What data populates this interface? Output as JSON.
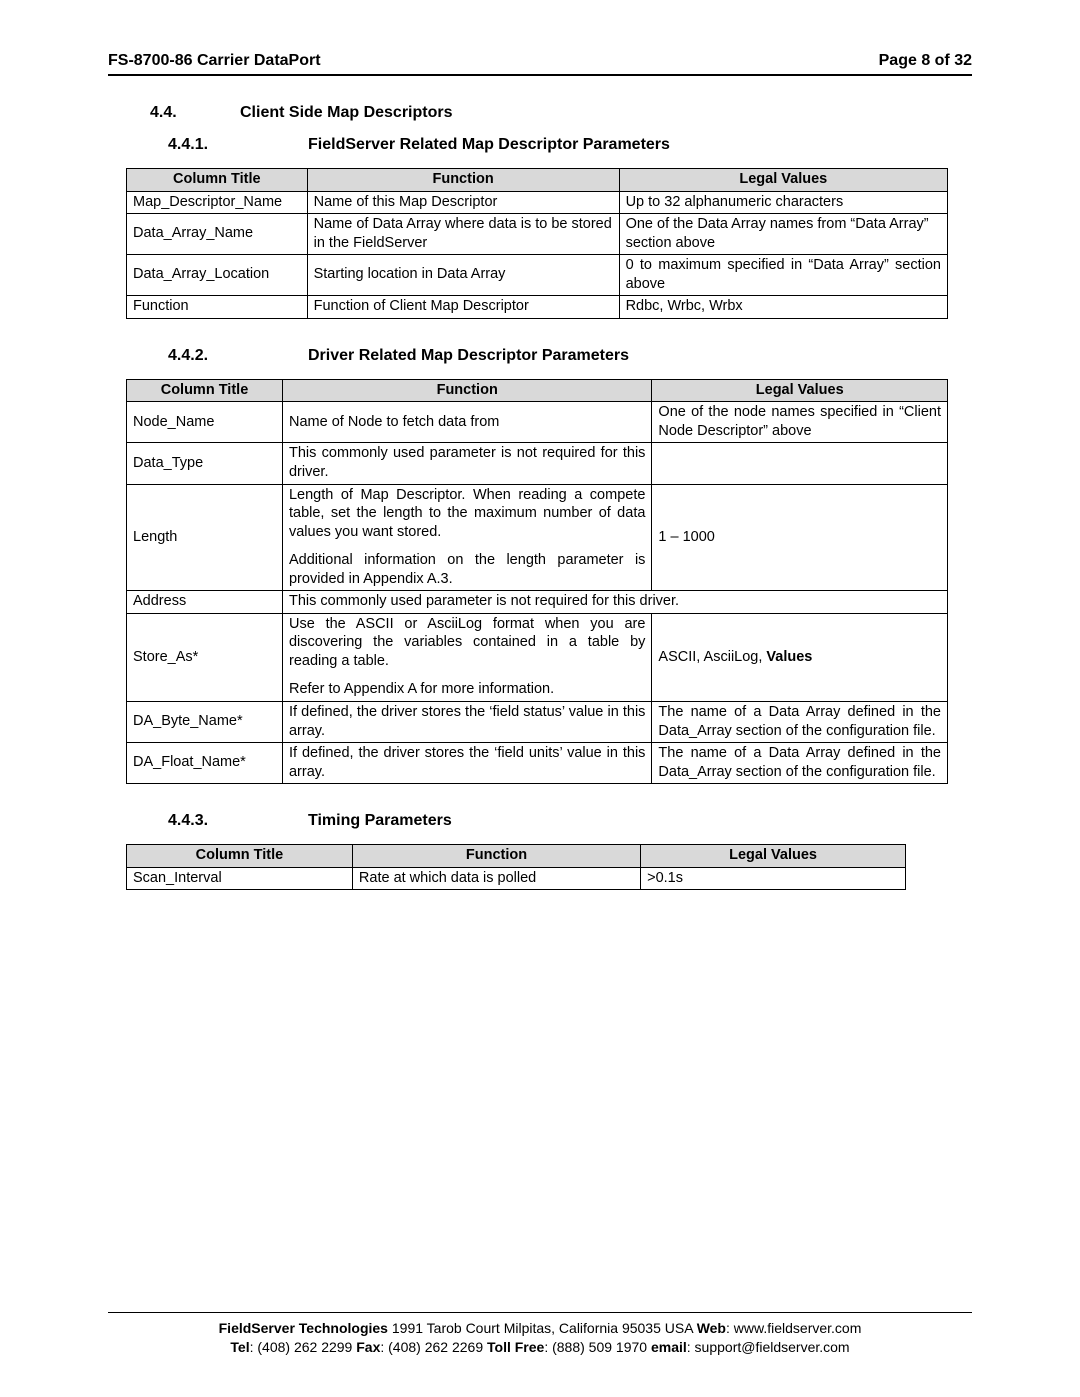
{
  "header": {
    "left": "FS-8700-86 Carrier DataPort",
    "right": "Page 8 of 32"
  },
  "s44": {
    "num": "4.4.",
    "title": "Client Side Map Descriptors"
  },
  "s441": {
    "num": "4.4.1.",
    "title": "FieldServer Related Map Descriptor Parameters"
  },
  "s442": {
    "num": "4.4.2.",
    "title": "Driver Related Map Descriptor Parameters"
  },
  "s443": {
    "num": "4.4.3.",
    "title": "Timing Parameters"
  },
  "th": {
    "col": "Column Title",
    "fn": "Function",
    "lv": "Legal Values"
  },
  "t1": {
    "widths": [
      "22%",
      "38%",
      "40%"
    ],
    "rows": [
      {
        "c": "Map_Descriptor_Name",
        "f": "Name of this Map Descriptor",
        "v": "Up to 32 alphanumeric characters"
      },
      {
        "c": "Data_Array_Name",
        "f": "Name of Data Array where data is to be stored in the FieldServer",
        "v": "One of the Data Array names from “Data Array” section above"
      },
      {
        "c": "Data_Array_Location",
        "f": "Starting location in Data Array",
        "v": "0 to maximum specified in “Data Array” section above",
        "vjust": true
      },
      {
        "c": "Function",
        "f": "Function of Client Map Descriptor",
        "v": "Rdbc, Wrbc, Wrbx"
      }
    ]
  },
  "t2": {
    "widths": [
      "19%",
      "45%",
      "36%"
    ],
    "rows": [
      {
        "c": "Node_Name",
        "f": "Name of Node to fetch data from",
        "v": "One of the node names specified in “Client Node Descriptor” above",
        "vjust": true
      },
      {
        "c": "Data_Type",
        "f": "This commonly used parameter is not required for this driver.",
        "fjust": true,
        "v": ""
      },
      {
        "c": "Length",
        "f1": "Length of Map Descriptor.  When reading a compete table, set the length to the maximum number of data values you want stored.",
        "f2": "Additional information on the length parameter is provided in Appendix A.3.",
        "fjust": true,
        "v": "1 – 1000"
      },
      {
        "c": "Address",
        "span": true,
        "f": "This commonly used parameter is not required for this driver."
      },
      {
        "c": "Store_As*",
        "f1": "Use the ASCII or AsciiLog format when you are discovering the variables contained in a table by reading a table.",
        "f2": "Refer to Appendix A for more information.",
        "fjust": true,
        "vplain": "ASCII, AsciiLog,  ",
        "vbold": "Values"
      },
      {
        "c": "DA_Byte_Name*",
        "f": "If defined, the driver stores the ‘field status’ value in this array.",
        "fjust": true,
        "v": "The name of a Data Array defined in the Data_Array section of the configuration file.",
        "vjust": true
      },
      {
        "c": "DA_Float_Name*",
        "f": "If defined, the driver stores the ‘field units’ value in this array.",
        "fjust": true,
        "v": "The name of a Data Array defined in the Data_Array section of the configuration file.",
        "vjust": true
      }
    ]
  },
  "t3": {
    "widths": [
      "29%",
      "37%",
      "34%"
    ],
    "rows": [
      {
        "c": "Scan_Interval",
        "f": "Rate at which data is polled",
        "v": ">0.1s"
      }
    ]
  },
  "footer": {
    "company": "FieldServer Technologies",
    "addr": " 1991 Tarob Court Milpitas, California 95035 USA   ",
    "webL": "Web",
    "web": ": www.fieldserver.com",
    "telL": "Tel",
    "tel": ": (408) 262 2299   ",
    "faxL": "Fax",
    "fax": ": (408) 262 2269   ",
    "tfL": "Toll Free",
    "tf": ": (888) 509 1970   ",
    "emL": "email",
    "em": ": support@fieldserver.com"
  }
}
